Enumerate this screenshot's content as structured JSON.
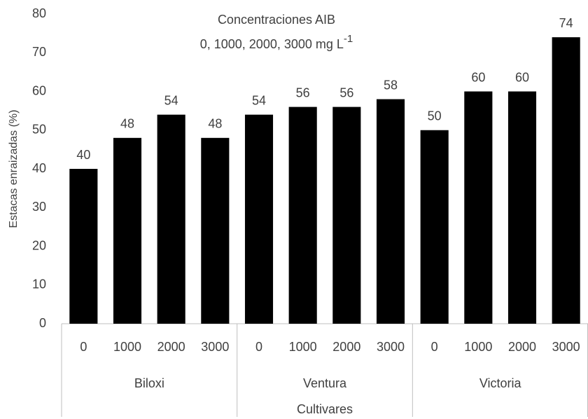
{
  "chart_data": {
    "type": "bar",
    "title": "Concentraciones AIB",
    "subtitle": "0, 1000, 2000, 3000 mg L",
    "subtitle_superscript": "-1",
    "x_label": "Cultivares",
    "y_label": "Estacas enraizadas (%)",
    "categories": [
      "0",
      "1000",
      "2000",
      "3000",
      "0",
      "1000",
      "2000",
      "3000",
      "0",
      "1000",
      "2000",
      "3000"
    ],
    "groups": [
      "Biloxi",
      "Ventura",
      "Victoria"
    ],
    "values": [
      40,
      48,
      54,
      48,
      54,
      56,
      56,
      58,
      50,
      60,
      60,
      74
    ],
    "color": "#000000",
    "ylim": [
      0,
      80
    ],
    "yticks": [
      0,
      10,
      20,
      30,
      40,
      50,
      60,
      70,
      80
    ],
    "grid": false
  }
}
